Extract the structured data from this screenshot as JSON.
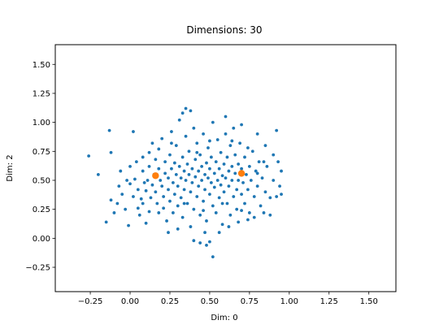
{
  "chart_data": {
    "type": "scatter",
    "title": "Dimensions: 30",
    "xlabel": "Dim: 0",
    "ylabel": "Dim: 2",
    "xlim": [
      -0.47,
      1.67
    ],
    "ylim": [
      -0.46,
      1.67
    ],
    "xticks": [
      -0.25,
      0.0,
      0.25,
      0.5,
      0.75,
      1.0,
      1.25,
      1.5
    ],
    "xtick_labels": [
      "−0.25",
      "0.00",
      "0.25",
      "0.50",
      "0.75",
      "1.00",
      "1.25",
      "1.50"
    ],
    "yticks": [
      -0.25,
      0.0,
      0.25,
      0.5,
      0.75,
      1.0,
      1.25,
      1.5
    ],
    "ytick_labels": [
      "−0.25",
      "0.00",
      "0.25",
      "0.50",
      "0.75",
      "1.00",
      "1.25",
      "1.50"
    ],
    "grid": false,
    "series": [
      {
        "color": "#1f77b4",
        "marker_size": "small",
        "points": [
          [
            -0.26,
            0.71
          ],
          [
            -0.2,
            0.55
          ],
          [
            -0.15,
            0.14
          ],
          [
            -0.12,
            0.33
          ],
          [
            -0.1,
            0.22
          ],
          [
            -0.08,
            0.3
          ],
          [
            -0.07,
            0.45
          ],
          [
            -0.05,
            0.38
          ],
          [
            -0.06,
            0.58
          ],
          [
            -0.03,
            0.25
          ],
          [
            -0.01,
            0.11
          ],
          [
            0.0,
            0.47
          ],
          [
            -0.12,
            0.74
          ],
          [
            -0.13,
            0.93
          ],
          [
            0.02,
            0.36
          ],
          [
            0.03,
            0.51
          ],
          [
            0.05,
            0.42
          ],
          [
            0.06,
            0.2
          ],
          [
            0.08,
            0.58
          ],
          [
            0.08,
            0.3
          ],
          [
            0.1,
            0.41
          ],
          [
            0.11,
            0.5
          ],
          [
            0.12,
            0.62
          ],
          [
            0.12,
            0.23
          ],
          [
            0.13,
            0.35
          ],
          [
            0.14,
            0.46
          ],
          [
            0.15,
            0.55
          ],
          [
            0.16,
            0.68
          ],
          [
            0.16,
            0.4
          ],
          [
            0.17,
            0.3
          ],
          [
            0.18,
            0.6
          ],
          [
            0.18,
            0.77
          ],
          [
            0.19,
            0.5
          ],
          [
            0.2,
            0.86
          ],
          [
            0.2,
            0.45
          ],
          [
            0.21,
            0.36
          ],
          [
            0.21,
            0.26
          ],
          [
            0.22,
            0.56
          ],
          [
            0.22,
            0.66
          ],
          [
            0.23,
            0.15
          ],
          [
            0.24,
            0.42
          ],
          [
            0.24,
            0.52
          ],
          [
            0.25,
            0.72
          ],
          [
            0.25,
            0.32
          ],
          [
            0.26,
            0.6
          ],
          [
            0.26,
            0.92
          ],
          [
            0.27,
            0.48
          ],
          [
            0.27,
            0.22
          ],
          [
            0.28,
            0.38
          ],
          [
            0.28,
            0.65
          ],
          [
            0.29,
            0.55
          ],
          [
            0.29,
            0.8
          ],
          [
            0.3,
            0.45
          ],
          [
            0.3,
            0.28
          ],
          [
            0.31,
            0.62
          ],
          [
            0.31,
            1.02
          ],
          [
            0.32,
            0.52
          ],
          [
            0.32,
            0.35
          ],
          [
            0.33,
            0.7
          ],
          [
            0.33,
            0.18
          ],
          [
            0.34,
            0.58
          ],
          [
            0.34,
            0.42
          ],
          [
            0.35,
            0.88
          ],
          [
            0.35,
            0.5
          ],
          [
            0.36,
            0.3
          ],
          [
            0.36,
            0.64
          ],
          [
            0.37,
            0.55
          ],
          [
            0.37,
            0.75
          ],
          [
            0.38,
            0.4
          ],
          [
            0.38,
            0.1
          ],
          [
            0.39,
            0.6
          ],
          [
            0.39,
            0.48
          ],
          [
            0.4,
            0.95
          ],
          [
            0.4,
            0.25
          ],
          [
            0.41,
            0.68
          ],
          [
            0.41,
            0.53
          ],
          [
            0.42,
            0.36
          ],
          [
            0.42,
            0.82
          ],
          [
            0.43,
            0.58
          ],
          [
            0.43,
            0.45
          ],
          [
            0.44,
            0.2
          ],
          [
            0.44,
            0.72
          ],
          [
            0.45,
            0.5
          ],
          [
            0.45,
            0.62
          ],
          [
            0.46,
            0.32
          ],
          [
            0.46,
            0.9
          ],
          [
            0.47,
            0.55
          ],
          [
            0.47,
            0.42
          ],
          [
            0.48,
            0.65
          ],
          [
            0.48,
            0.15
          ],
          [
            0.49,
            0.52
          ],
          [
            0.49,
            0.78
          ],
          [
            0.5,
            0.6
          ],
          [
            0.5,
            0.38
          ],
          [
            0.51,
            0.48
          ],
          [
            0.51,
            0.7
          ],
          [
            0.52,
            0.28
          ],
          [
            0.52,
            1.0
          ],
          [
            0.53,
            0.56
          ],
          [
            0.53,
            0.44
          ],
          [
            0.54,
            0.66
          ],
          [
            0.54,
            0.22
          ],
          [
            0.55,
            0.5
          ],
          [
            0.55,
            0.85
          ],
          [
            0.56,
            0.6
          ],
          [
            0.56,
            0.35
          ],
          [
            0.57,
            0.74
          ],
          [
            0.57,
            0.46
          ],
          [
            0.58,
            0.54
          ],
          [
            0.58,
            0.12
          ],
          [
            0.59,
            0.64
          ],
          [
            0.59,
            0.4
          ],
          [
            0.6,
            0.9
          ],
          [
            0.6,
            0.52
          ],
          [
            0.61,
            0.3
          ],
          [
            0.61,
            0.7
          ],
          [
            0.62,
            0.58
          ],
          [
            0.62,
            0.45
          ],
          [
            0.63,
            0.8
          ],
          [
            0.63,
            0.2
          ],
          [
            0.64,
            0.62
          ],
          [
            0.64,
            0.5
          ],
          [
            0.65,
            0.36
          ],
          [
            0.65,
            0.95
          ],
          [
            0.66,
            0.56
          ],
          [
            0.66,
            0.72
          ],
          [
            0.67,
            0.42
          ],
          [
            0.67,
            0.25
          ],
          [
            0.68,
            0.64
          ],
          [
            0.68,
            0.5
          ],
          [
            0.69,
            0.82
          ],
          [
            0.7,
            0.38
          ],
          [
            0.7,
            0.6
          ],
          [
            0.71,
            0.48
          ],
          [
            0.72,
            0.7
          ],
          [
            0.72,
            0.3
          ],
          [
            0.73,
            0.55
          ],
          [
            0.74,
            0.42
          ],
          [
            0.75,
            0.62
          ],
          [
            0.75,
            0.22
          ],
          [
            0.76,
            0.5
          ],
          [
            0.77,
            0.75
          ],
          [
            0.78,
            0.36
          ],
          [
            0.79,
            0.58
          ],
          [
            0.8,
            0.45
          ],
          [
            0.81,
            0.66
          ],
          [
            0.82,
            0.28
          ],
          [
            0.83,
            0.52
          ],
          [
            0.85,
            0.4
          ],
          [
            0.86,
            0.62
          ],
          [
            0.88,
            0.35
          ],
          [
            0.9,
            0.5
          ],
          [
            0.92,
            0.93
          ],
          [
            0.92,
            0.36
          ],
          [
            0.95,
            0.38
          ],
          [
            0.94,
            0.45
          ],
          [
            0.95,
            0.58
          ],
          [
            0.93,
            0.66
          ],
          [
            0.85,
            0.8
          ],
          [
            0.8,
            0.9
          ],
          [
            0.7,
            0.98
          ],
          [
            0.6,
            1.05
          ],
          [
            0.4,
            -0.02
          ],
          [
            0.44,
            -0.04
          ],
          [
            0.48,
            -0.06
          ],
          [
            0.5,
            -0.03
          ],
          [
            0.52,
            -0.16
          ],
          [
            0.47,
            0.05
          ],
          [
            0.38,
            1.1
          ],
          [
            0.35,
            1.12
          ],
          [
            0.33,
            1.08
          ],
          [
            0.02,
            0.92
          ],
          [
            0.08,
            0.7
          ],
          [
            0.14,
            0.82
          ],
          [
            0.1,
            0.13
          ],
          [
            0.05,
            0.26
          ],
          [
            0.09,
            0.48
          ],
          [
            0.24,
            0.05
          ],
          [
            0.3,
            0.08
          ],
          [
            0.56,
            0.05
          ],
          [
            0.62,
            0.1
          ],
          [
            0.68,
            0.14
          ],
          [
            0.74,
            0.16
          ],
          [
            0.78,
            0.18
          ],
          [
            0.84,
            0.22
          ],
          [
            0.88,
            0.2
          ],
          [
            0.0,
            0.62
          ],
          [
            -0.02,
            0.5
          ],
          [
            0.04,
            0.66
          ],
          [
            0.07,
            0.34
          ],
          [
            0.12,
            0.74
          ],
          [
            0.18,
            0.22
          ],
          [
            0.26,
            0.82
          ],
          [
            0.34,
            0.3
          ],
          [
            0.42,
            0.74
          ],
          [
            0.46,
            0.24
          ],
          [
            0.5,
            0.84
          ],
          [
            0.58,
            0.3
          ],
          [
            0.64,
            0.84
          ],
          [
            0.7,
            0.24
          ],
          [
            0.74,
            0.78
          ],
          [
            0.8,
            0.56
          ],
          [
            0.84,
            0.66
          ],
          [
            0.9,
            0.72
          ]
        ]
      },
      {
        "color": "#ff7f0e",
        "marker_size": "large",
        "points": [
          [
            0.16,
            0.54
          ],
          [
            0.7,
            0.56
          ]
        ]
      }
    ]
  }
}
